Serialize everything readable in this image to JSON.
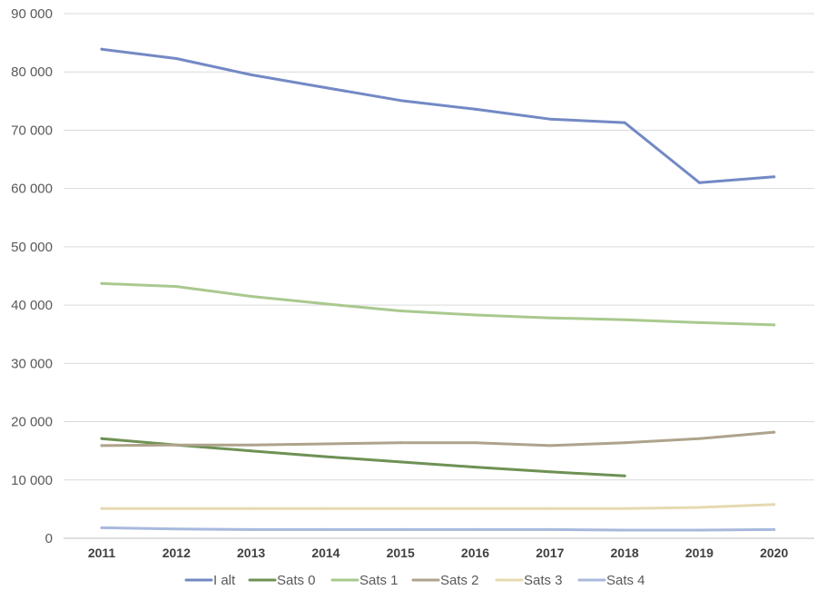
{
  "chart_data": {
    "type": "line",
    "title": "",
    "xlabel": "",
    "ylabel": "",
    "categories": [
      "2011",
      "2012",
      "2013",
      "2014",
      "2015",
      "2016",
      "2017",
      "2018",
      "2019",
      "2020"
    ],
    "ylim": [
      0,
      90000
    ],
    "yticks": [
      0,
      10000,
      20000,
      30000,
      40000,
      50000,
      60000,
      70000,
      80000,
      90000
    ],
    "ytick_labels": [
      "0",
      "10 000",
      "20 000",
      "30 000",
      "40 000",
      "50 000",
      "60 000",
      "70 000",
      "80 000",
      "90 000"
    ],
    "grid": true,
    "legend_position": "bottom",
    "series": [
      {
        "name": "I alt",
        "color": "#7389c5",
        "values": [
          83900,
          82300,
          79500,
          77300,
          75100,
          73600,
          71900,
          71300,
          61000,
          62000
        ]
      },
      {
        "name": "Sats 0",
        "color": "#6e9154",
        "values": [
          17100,
          16000,
          15000,
          14000,
          13100,
          12200,
          11400,
          10700,
          null,
          null
        ]
      },
      {
        "name": "Sats 1",
        "color": "#a9c98e",
        "values": [
          43700,
          43200,
          41500,
          40200,
          39000,
          38300,
          37800,
          37500,
          37000,
          36600
        ]
      },
      {
        "name": "Sats 2",
        "color": "#aea38b",
        "values": [
          15900,
          16000,
          16000,
          16200,
          16400,
          16400,
          15900,
          16400,
          17100,
          18200
        ]
      },
      {
        "name": "Sats 3",
        "color": "#e6d9b1",
        "values": [
          5100,
          5100,
          5100,
          5100,
          5100,
          5100,
          5100,
          5100,
          5300,
          5800
        ]
      },
      {
        "name": "Sats 4",
        "color": "#a8b9dd",
        "values": [
          1800,
          1600,
          1500,
          1500,
          1500,
          1500,
          1500,
          1400,
          1400,
          1500
        ]
      }
    ]
  }
}
